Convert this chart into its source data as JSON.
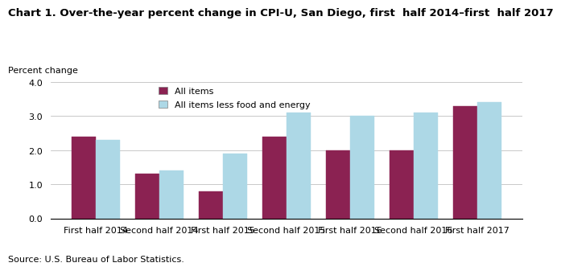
{
  "title": "Chart 1. Over-the-year percent change in CPI-U, San Diego, first  half 2014–first  half 2017",
  "ylabel": "Percent change",
  "source": "Source: U.S. Bureau of Labor Statistics.",
  "categories": [
    "First half 2014",
    "Second half 2014",
    "First half 2015",
    "Second half 2015",
    "First half 2016",
    "Second half 2016",
    "First half 2017"
  ],
  "all_items": [
    2.4,
    1.3,
    0.8,
    2.4,
    2.0,
    2.0,
    3.3
  ],
  "all_items_less": [
    2.3,
    1.4,
    1.9,
    3.1,
    3.0,
    3.1,
    3.4
  ],
  "color_all_items": "#8B2252",
  "color_less": "#ADD8E6",
  "ylim": [
    0,
    4.0
  ],
  "yticks": [
    0.0,
    1.0,
    2.0,
    3.0,
    4.0
  ],
  "legend_all_items": "All items",
  "legend_less": "All items less food and energy",
  "bar_width": 0.38,
  "title_fontsize": 9.5,
  "axis_fontsize": 8.0,
  "legend_fontsize": 8.0
}
